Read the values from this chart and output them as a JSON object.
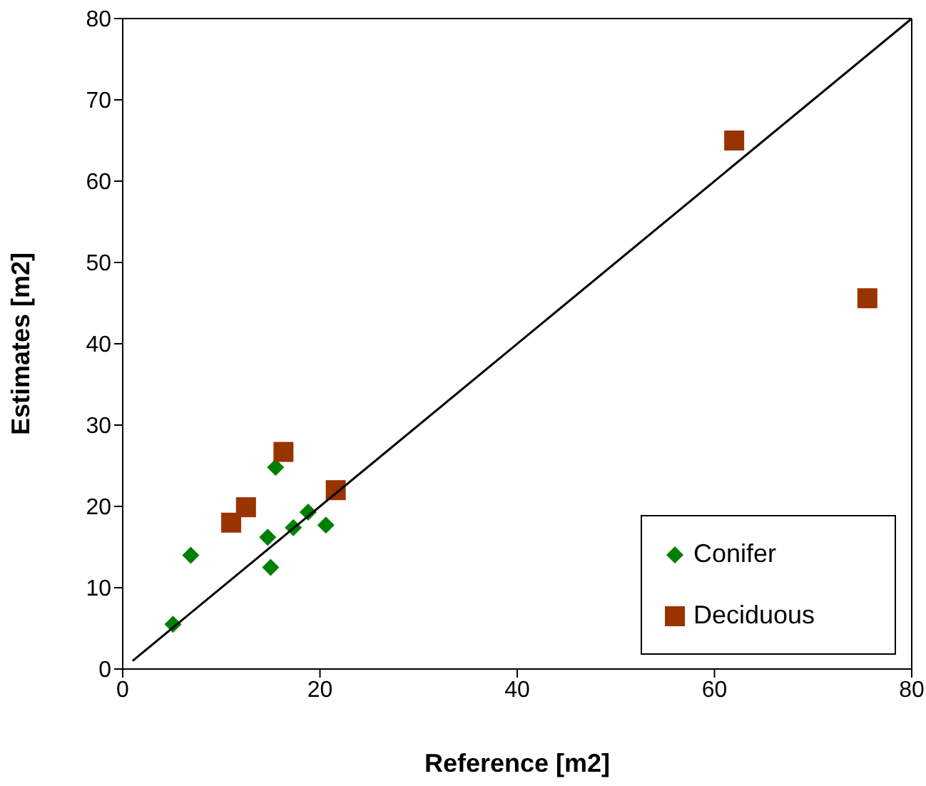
{
  "chart_data": {
    "type": "scatter",
    "xlabel": "Reference [m2]",
    "ylabel": "Estimates [m2]",
    "xlim": [
      0,
      80
    ],
    "ylim": [
      0,
      80
    ],
    "xticks": [
      0,
      20,
      40,
      60,
      80
    ],
    "yticks": [
      0,
      10,
      20,
      30,
      40,
      50,
      60,
      70,
      80
    ],
    "legend": "bottom right",
    "series": [
      {
        "name": "Conifer",
        "color": "#008000",
        "marker": "diamond",
        "x": [
          5.1,
          6.9,
          15.5,
          14.7,
          15.0,
          17.3,
          18.8,
          20.6
        ],
        "values": [
          5.5,
          14.0,
          24.8,
          16.2,
          12.5,
          17.4,
          19.3,
          17.7
        ]
      },
      {
        "name": "Deciduous",
        "color": "#993300",
        "marker": "square",
        "x": [
          11.0,
          12.5,
          16.3,
          21.6,
          62.0,
          75.5
        ],
        "values": [
          18.0,
          19.9,
          26.7,
          22.0,
          65.0,
          45.6
        ]
      },
      {
        "type": "line",
        "color": "#000000",
        "marker": "none",
        "x": [
          1,
          80
        ],
        "values": [
          1,
          80
        ]
      }
    ]
  }
}
